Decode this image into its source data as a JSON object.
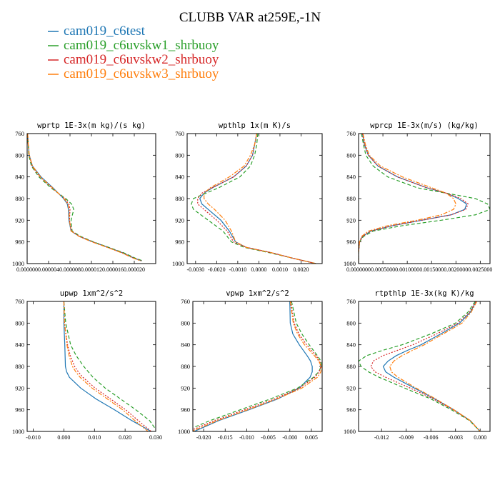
{
  "figure": {
    "title": "CLUBB VAR at259E,-1N",
    "legend": [
      {
        "label": "cam019_c6test",
        "color": "#1f77b4"
      },
      {
        "label": "cam019_c6uvskw1_shrbuoy",
        "color": "#2ca02c"
      },
      {
        "label": "cam019_c6uvskw2_shrbuoy",
        "color": "#d62728"
      },
      {
        "label": "cam019_c6uvskw3_shrbuoy",
        "color": "#ff7f0e"
      }
    ]
  },
  "chart_data": [
    {
      "type": "line",
      "title": "wprtp  1E-3x(m kg)/(s kg)",
      "xlim": [
        0,
        2.4e-05
      ],
      "ylim": [
        760,
        1000
      ],
      "y_inverted": true,
      "xticks": [
        0,
        4e-06,
        8e-06,
        1.2e-05,
        1.6e-05,
        2e-05
      ],
      "xticklabels": [
        "0.000000",
        "0.000004",
        "0.000008",
        "0.000012",
        "0.000016",
        "0.000020"
      ],
      "yticks": [
        760,
        800,
        840,
        880,
        920,
        960,
        1000
      ],
      "y": [
        760,
        780,
        800,
        820,
        840,
        860,
        880,
        890,
        900,
        920,
        940,
        950,
        960,
        970,
        980,
        990,
        995
      ],
      "series": [
        {
          "name": "cam019_c6test",
          "x": [
            1e-07,
            2e-07,
            4e-07,
            1e-06,
            2.6e-06,
            4.8e-06,
            6.8e-06,
            7.5e-06,
            7.7e-06,
            7.8e-06,
            8.2e-06,
            9.8e-06,
            1.23e-05,
            1.51e-05,
            1.78e-05,
            2e-05,
            2.14e-05
          ],
          "dash": "solid"
        },
        {
          "name": "cam019_c6uvskw1_shrbuoy",
          "x": [
            1e-07,
            2e-07,
            3e-07,
            8e-07,
            2.2e-06,
            4.4e-06,
            7.2e-06,
            8.3e-06,
            8.7e-06,
            8.2e-06,
            8.4e-06,
            1e-05,
            1.24e-05,
            1.52e-05,
            1.8e-05,
            2.02e-05,
            2.16e-05
          ],
          "dash": "dash"
        },
        {
          "name": "cam019_c6uvskw2_shrbuoy",
          "x": [
            1e-07,
            2e-07,
            4e-07,
            9e-07,
            2.4e-06,
            4.6e-06,
            7e-06,
            7.8e-06,
            8e-06,
            7.9e-06,
            8.3e-06,
            9.8e-06,
            1.22e-05,
            1.5e-05,
            1.77e-05,
            1.99e-05,
            2.13e-05
          ],
          "dash": "dot"
        },
        {
          "name": "cam019_c6uvskw3_shrbuoy",
          "x": [
            1e-07,
            2e-07,
            4e-07,
            1e-06,
            2.5e-06,
            4.7e-06,
            6.9e-06,
            7.6e-06,
            7.8e-06,
            7.9e-06,
            8.2e-06,
            9.7e-06,
            1.21e-05,
            1.49e-05,
            1.76e-05,
            1.98e-05,
            2.12e-05
          ],
          "dash": "dashdot"
        }
      ]
    },
    {
      "type": "line",
      "title": "wpthlp  1x(m K)/s",
      "xlim": [
        -0.0034,
        0.003
      ],
      "ylim": [
        760,
        1000
      ],
      "y_inverted": true,
      "xticks": [
        -0.003,
        -0.002,
        -0.001,
        0,
        0.001,
        0.002
      ],
      "xticklabels": [
        "-0.0030",
        "-0.0020",
        "-0.0010",
        "0.0000",
        "0.0010",
        "0.0020"
      ],
      "yticks": [
        760,
        800,
        840,
        880,
        920,
        960,
        1000
      ],
      "y": [
        760,
        780,
        800,
        820,
        840,
        860,
        870,
        880,
        890,
        900,
        920,
        940,
        960,
        970,
        980,
        990,
        1000
      ],
      "series": [
        {
          "name": "cam019_c6test",
          "x": [
            -0.0001,
            -0.0002,
            -0.0003,
            -0.0006,
            -0.0012,
            -0.0022,
            -0.0026,
            -0.0028,
            -0.0027,
            -0.0024,
            -0.0018,
            -0.0014,
            -0.0011,
            -0.0006,
            0.0006,
            0.0016,
            0.0027
          ],
          "dash": "solid"
        },
        {
          "name": "cam019_c6uvskw1_shrbuoy",
          "x": [
            -5e-05,
            -0.0001,
            -0.0002,
            -0.0004,
            -0.0009,
            -0.0019,
            -0.0025,
            -0.0031,
            -0.0032,
            -0.0031,
            -0.0024,
            -0.0017,
            -0.0013,
            -0.0007,
            0.0005,
            0.0016,
            0.0027
          ],
          "dash": "dash"
        },
        {
          "name": "cam019_c6uvskw2_shrbuoy",
          "x": [
            -0.0001,
            -0.0002,
            -0.0003,
            -0.0006,
            -0.0012,
            -0.0022,
            -0.0027,
            -0.0029,
            -0.0029,
            -0.0026,
            -0.002,
            -0.0015,
            -0.0012,
            -0.0006,
            0.0006,
            0.0016,
            0.0027
          ],
          "dash": "dot"
        },
        {
          "name": "cam019_c6uvskw3_shrbuoy",
          "x": [
            -0.0001,
            -0.0002,
            -0.0004,
            -0.0007,
            -0.0014,
            -0.0023,
            -0.0026,
            -0.0026,
            -0.0024,
            -0.0021,
            -0.0016,
            -0.0013,
            -0.0011,
            -0.0006,
            0.0006,
            0.0016,
            0.0027
          ],
          "dash": "dashdot"
        }
      ]
    },
    {
      "type": "line",
      "title": "wprcp  1E-3x(m/s) (kg/kg)",
      "xlim": [
        0,
        0.0027
      ],
      "ylim": [
        760,
        1000
      ],
      "y_inverted": true,
      "xticks": [
        0,
        0.0005,
        0.001,
        0.0015,
        0.002,
        0.0025
      ],
      "xticklabels": [
        "0.0000000",
        "0.0005000",
        "0.0010000",
        "0.0015000",
        "0.0020000",
        "0.0025000"
      ],
      "yticks": [
        760,
        800,
        840,
        880,
        920,
        960,
        1000
      ],
      "y": [
        760,
        780,
        800,
        820,
        840,
        860,
        870,
        880,
        890,
        900,
        910,
        920,
        930,
        940,
        950,
        960,
        980,
        1000
      ],
      "series": [
        {
          "name": "cam019_c6test",
          "x": [
            8e-05,
            0.00012,
            0.0002,
            0.0004,
            0.0008,
            0.0014,
            0.0018,
            0.00205,
            0.00222,
            0.00218,
            0.0019,
            0.0013,
            0.0007,
            0.00025,
            8e-05,
            2e-05,
            0.0,
            0.0
          ],
          "dash": "solid"
        },
        {
          "name": "cam019_c6uvskw1_shrbuoy",
          "x": [
            6e-05,
            0.0001,
            0.00015,
            0.0003,
            0.0006,
            0.0012,
            0.0018,
            0.0024,
            0.00265,
            0.0027,
            0.0024,
            0.0017,
            0.0009,
            0.0003,
            0.0001,
            2e-05,
            0.0,
            0.0
          ],
          "dash": "dash"
        },
        {
          "name": "cam019_c6uvskw2_shrbuoy",
          "x": [
            8e-05,
            0.00012,
            0.0002,
            0.0004,
            0.0008,
            0.0014,
            0.0018,
            0.0021,
            0.00225,
            0.0022,
            0.0019,
            0.0013,
            0.0007,
            0.00025,
            8e-05,
            2e-05,
            0.0,
            0.0
          ],
          "dash": "dot"
        },
        {
          "name": "cam019_c6uvskw3_shrbuoy",
          "x": [
            9e-05,
            0.00014,
            0.00022,
            0.00045,
            0.0009,
            0.0015,
            0.0018,
            0.00195,
            0.002,
            0.00195,
            0.0017,
            0.0012,
            0.0006,
            0.0002,
            6e-05,
            2e-05,
            0.0,
            0.0
          ],
          "dash": "dashdot"
        }
      ]
    },
    {
      "type": "line",
      "title": "upwp  1xm^2/s^2",
      "xlim": [
        -0.012,
        0.03
      ],
      "ylim": [
        760,
        1000
      ],
      "y_inverted": true,
      "xticks": [
        -0.01,
        0,
        0.01,
        0.02,
        0.03
      ],
      "xticklabels": [
        "-0.010",
        "0.000",
        "0.010",
        "0.020",
        "0.030"
      ],
      "yticks": [
        760,
        800,
        840,
        880,
        920,
        960,
        1000
      ],
      "y": [
        760,
        800,
        840,
        860,
        880,
        890,
        900,
        920,
        940,
        960,
        980,
        1000
      ],
      "series": [
        {
          "name": "cam019_c6test",
          "x": [
            0.0,
            0.0,
            0.0003,
            0.0004,
            0.0005,
            0.0009,
            0.0018,
            0.0055,
            0.0105,
            0.0165,
            0.0222,
            0.0285
          ],
          "dash": "solid"
        },
        {
          "name": "cam019_c6uvskw1_shrbuoy",
          "x": [
            0.0,
            0.0006,
            0.0022,
            0.004,
            0.0065,
            0.008,
            0.0095,
            0.0135,
            0.0185,
            0.0235,
            0.028,
            0.0305
          ],
          "dash": "dash"
        },
        {
          "name": "cam019_c6uvskw2_shrbuoy",
          "x": [
            0.0,
            0.0002,
            0.0012,
            0.0021,
            0.0035,
            0.0047,
            0.0062,
            0.0102,
            0.0152,
            0.0202,
            0.0243,
            0.0285
          ],
          "dash": "dot"
        },
        {
          "name": "cam019_c6uvskw3_shrbuoy",
          "x": [
            0.0,
            0.0002,
            0.001,
            0.0017,
            0.0028,
            0.0039,
            0.0053,
            0.0092,
            0.0142,
            0.0192,
            0.0232,
            0.0275
          ],
          "dash": "dashdot"
        }
      ]
    },
    {
      "type": "line",
      "title": "vpwp  1xm^2/s^2",
      "xlim": [
        -0.0225,
        0.0075
      ],
      "ylim": [
        760,
        1000
      ],
      "y_inverted": true,
      "xticks": [
        -0.02,
        -0.015,
        -0.01,
        -0.005,
        0,
        0.005
      ],
      "xticklabels": [
        "-0.020",
        "-0.015",
        "-0.010",
        "-0.005",
        "-0.000",
        "0.005"
      ],
      "yticks": [
        760,
        800,
        840,
        880,
        920,
        960,
        1000
      ],
      "y": [
        760,
        800,
        820,
        840,
        860,
        870,
        880,
        890,
        900,
        920,
        940,
        960,
        980,
        1000
      ],
      "series": [
        {
          "name": "cam019_c6test",
          "x": [
            0.0,
            0.0001,
            0.0007,
            0.0022,
            0.004,
            0.0048,
            0.0052,
            0.0052,
            0.0047,
            0.0022,
            -0.0028,
            -0.0095,
            -0.0165,
            -0.0222
          ],
          "dash": "solid"
        },
        {
          "name": "cam019_c6uvskw1_shrbuoy",
          "x": [
            0.0004,
            0.0015,
            0.0028,
            0.0045,
            0.0064,
            0.0072,
            0.0073,
            0.0067,
            0.0055,
            0.0018,
            -0.0045,
            -0.0115,
            -0.0185,
            -0.0245
          ],
          "dash": "dash"
        },
        {
          "name": "cam019_c6uvskw2_shrbuoy",
          "x": [
            0.0002,
            0.001,
            0.0021,
            0.0039,
            0.0061,
            0.0069,
            0.0072,
            0.0068,
            0.0058,
            0.0022,
            -0.0035,
            -0.0105,
            -0.0175,
            -0.0235
          ],
          "dash": "dot"
        },
        {
          "name": "cam019_c6uvskw3_shrbuoy",
          "x": [
            0.0001,
            0.0008,
            0.0018,
            0.0034,
            0.0057,
            0.0067,
            0.0073,
            0.0072,
            0.0064,
            0.0028,
            -0.003,
            -0.0098,
            -0.0168,
            -0.0228
          ],
          "dash": "dashdot"
        }
      ]
    },
    {
      "type": "line",
      "title": "rtpthlp  1E-3x(kg K)/kg",
      "xlim": [
        -0.0148,
        0.0012
      ],
      "ylim": [
        760,
        1000
      ],
      "y_inverted": true,
      "xticks": [
        -0.012,
        -0.009,
        -0.006,
        -0.003,
        0
      ],
      "xticklabels": [
        "-0.012",
        "-0.009",
        "-0.006",
        "-0.003",
        "0.000"
      ],
      "yticks": [
        760,
        800,
        840,
        880,
        920,
        960,
        1000
      ],
      "y": [
        760,
        780,
        800,
        820,
        840,
        850,
        860,
        870,
        880,
        890,
        900,
        920,
        940,
        960,
        980,
        1000
      ],
      "series": [
        {
          "name": "cam019_c6test",
          "x": [
            -0.0005,
            -0.0012,
            -0.0025,
            -0.0048,
            -0.0072,
            -0.0088,
            -0.0102,
            -0.0112,
            -0.0118,
            -0.0115,
            -0.0105,
            -0.008,
            -0.0055,
            -0.0032,
            -0.0012,
            0.0
          ],
          "dash": "solid"
        },
        {
          "name": "cam019_c6uvskw1_shrbuoy",
          "x": [
            -0.0006,
            -0.0015,
            -0.003,
            -0.006,
            -0.0095,
            -0.0118,
            -0.0138,
            -0.0148,
            -0.0145,
            -0.0136,
            -0.0123,
            -0.0092,
            -0.006,
            -0.0035,
            -0.0013,
            0.0
          ],
          "dash": "dash"
        },
        {
          "name": "cam019_c6uvskw2_shrbuoy",
          "x": [
            -0.0005,
            -0.0013,
            -0.0027,
            -0.0053,
            -0.0082,
            -0.01,
            -0.0118,
            -0.013,
            -0.0133,
            -0.0128,
            -0.0115,
            -0.0085,
            -0.0057,
            -0.0033,
            -0.0012,
            0.0
          ],
          "dash": "dot"
        },
        {
          "name": "cam019_c6uvskw3_shrbuoy",
          "x": [
            -0.0004,
            -0.0011,
            -0.0022,
            -0.0045,
            -0.0068,
            -0.0082,
            -0.0095,
            -0.0105,
            -0.011,
            -0.0108,
            -0.01,
            -0.0078,
            -0.0054,
            -0.0032,
            -0.0012,
            0.0
          ],
          "dash": "dashdot"
        }
      ]
    }
  ]
}
